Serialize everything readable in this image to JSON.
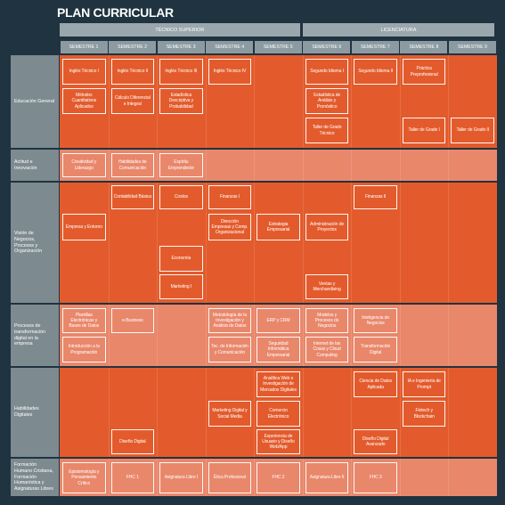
{
  "header": {
    "title": "PLAN CURRICULAR"
  },
  "programs": [
    {
      "label": "TÉCNICO SUPERIOR"
    },
    {
      "label": "LICENCIATURA"
    }
  ],
  "semesters": [
    "SEMESTRE 1",
    "SEMESTRE 2",
    "SEMESTRE 3",
    "SEMESTRE 4",
    "SEMESTRE 5",
    "SEMESTRE 6",
    "SEMESTRE 7",
    "SEMESTRE 8",
    "SEMESTRE 9"
  ],
  "areas": [
    {
      "label": "Educación General",
      "courses": [
        {
          "name": "Inglés Técnico I"
        },
        {
          "name": "Inglés Técnico II"
        },
        {
          "name": "Inglés Técnico III"
        },
        {
          "name": "Inglés Técnico IV"
        },
        {
          "name": "Segundo Idioma I"
        },
        {
          "name": "Segundo Idioma II"
        },
        {
          "name": "Práctica Preprofesional"
        },
        {
          "name": "Métodos Cuantitativos Aplicados"
        },
        {
          "name": "Cálculo Diferencial e Integral"
        },
        {
          "name": "Estadística Descriptiva y Probabilidad"
        },
        {
          "name": "Estadística de Análisis y Pronóstico"
        },
        {
          "name": "Taller de Grado Técnico"
        },
        {
          "name": "Taller de Grado I"
        },
        {
          "name": "Taller de Grado II"
        }
      ]
    },
    {
      "label": "Actitud e Innovación",
      "courses": [
        {
          "name": "Creatividad y Liderazgo"
        },
        {
          "name": "Habilidades de Comunicación"
        },
        {
          "name": "Espíritu Emprendedor"
        }
      ]
    },
    {
      "label": "Visión de Negocios, Procesos y Organización",
      "courses": [
        {
          "name": "Contabilidad Básica"
        },
        {
          "name": "Costos"
        },
        {
          "name": "Finanzas I"
        },
        {
          "name": "Finanzas II"
        },
        {
          "name": "Empresa y Entorno"
        },
        {
          "name": "Dirección Empresas y Comp. Organizacional"
        },
        {
          "name": "Estrategia Empresarial"
        },
        {
          "name": "Administración de Proyectos"
        },
        {
          "name": "Economía"
        },
        {
          "name": "Marketing I"
        },
        {
          "name": "Ventas y Merchandising"
        }
      ]
    },
    {
      "label": "Procesos de transformación digital en la empresa",
      "courses": [
        {
          "name": "Plantillas Electrónicas y Bases de Datos"
        },
        {
          "name": "e-Business"
        },
        {
          "name": "Metodología de la Investigación y Análisis de Datos"
        },
        {
          "name": "ERP y CRM"
        },
        {
          "name": "Modelos y Procesos de Negocios"
        },
        {
          "name": "Inteligencia de Negocios"
        },
        {
          "name": "Introducción a la Programación"
        },
        {
          "name": "Tec. de Información y Comunicación"
        },
        {
          "name": "Seguridad Informática Empresarial"
        },
        {
          "name": "Internet de las Cosas y Cloud Computing"
        },
        {
          "name": "Transformación Digital"
        }
      ]
    },
    {
      "label": "Habilidades Digitales",
      "courses": [
        {
          "name": "Analítica Web e Investigación de Mercados Digitales"
        },
        {
          "name": "Ciencia de Datos Aplicada"
        },
        {
          "name": "IA e Ingeniería de Prompt"
        },
        {
          "name": "Marketing Digital y Social Media"
        },
        {
          "name": "Comercio Electrónico"
        },
        {
          "name": "Fintech y Blockchain"
        },
        {
          "name": "Diseño Digital"
        },
        {
          "name": "Experiencia de Usuario y Diseño Web/App"
        },
        {
          "name": "Diseño Digital Avanzado"
        }
      ]
    },
    {
      "label": "Formación Humano Cristiana, Formación Humanística y Asignaturas Libres",
      "courses": [
        {
          "name": "Epistemología y Pensamiento Crítico"
        },
        {
          "name": "FHC 1"
        },
        {
          "name": "Asignatura Libre I"
        },
        {
          "name": "Ética Profesional"
        },
        {
          "name": "FHC 2"
        },
        {
          "name": "Asignatura Libre II"
        },
        {
          "name": "FHC 3"
        }
      ]
    }
  ]
}
